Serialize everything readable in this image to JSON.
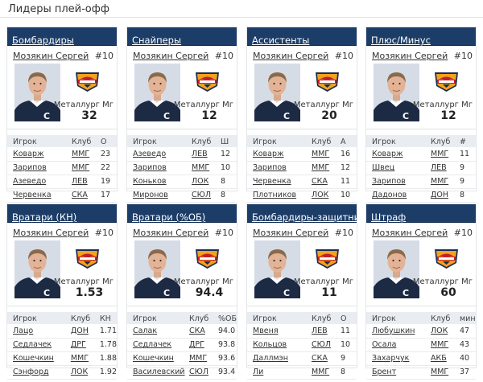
{
  "page": {
    "title": "Лидеры плей-офф"
  },
  "colors": {
    "card_header_bg": "#1c3d68",
    "card_header_text": "#ffffff",
    "table_header_bg": "#e9edf2"
  },
  "cards": [
    {
      "title": "Бомбардиры",
      "leader": {
        "name": "Мозякин Сергей",
        "number": "#10",
        "club": "Металлург Мг",
        "value": "32",
        "photo_icon": "player-photo",
        "logo_icon": "metallurg-logo"
      },
      "columns": [
        "Игрок",
        "Клуб",
        "О"
      ],
      "rows": [
        {
          "player": "Коварж",
          "club": "ММГ",
          "value": "23"
        },
        {
          "player": "Зарипов",
          "club": "ММГ",
          "value": "22"
        },
        {
          "player": "Азеведо",
          "club": "ЛЕВ",
          "value": "19"
        },
        {
          "player": "Червенка",
          "club": "СКА",
          "value": "17"
        }
      ]
    },
    {
      "title": "Снайперы",
      "leader": {
        "name": "Мозякин Сергей",
        "number": "#10",
        "club": "Металлург Мг",
        "value": "12",
        "photo_icon": "player-photo",
        "logo_icon": "metallurg-logo"
      },
      "columns": [
        "Игрок",
        "Клуб",
        "Ш"
      ],
      "rows": [
        {
          "player": "Азеведо",
          "club": "ЛЕВ",
          "value": "12"
        },
        {
          "player": "Зарипов",
          "club": "ММГ",
          "value": "10"
        },
        {
          "player": "Коньков",
          "club": "ЛОК",
          "value": "8"
        },
        {
          "player": "Миронов",
          "club": "СЮЛ",
          "value": "8"
        }
      ]
    },
    {
      "title": "Ассистенты",
      "leader": {
        "name": "Мозякин Сергей",
        "number": "#10",
        "club": "Металлург Мг",
        "value": "20",
        "photo_icon": "player-photo",
        "logo_icon": "metallurg-logo"
      },
      "columns": [
        "Игрок",
        "Клуб",
        "А"
      ],
      "rows": [
        {
          "player": "Коварж",
          "club": "ММГ",
          "value": "16"
        },
        {
          "player": "Зарипов",
          "club": "ММГ",
          "value": "12"
        },
        {
          "player": "Червенка",
          "club": "СКА",
          "value": "11"
        },
        {
          "player": "Плотников",
          "club": "ЛОК",
          "value": "10"
        }
      ]
    },
    {
      "title": "Плюс/Минус",
      "leader": {
        "name": "Мозякин Сергей",
        "number": "#10",
        "club": "Металлург Мг",
        "value": "12",
        "photo_icon": "player-photo",
        "logo_icon": "metallurg-logo"
      },
      "columns": [
        "Игрок",
        "Клуб",
        "#"
      ],
      "rows": [
        {
          "player": "Коварж",
          "club": "ММГ",
          "value": "11"
        },
        {
          "player": "Швец",
          "club": "ЛЕВ",
          "value": "9"
        },
        {
          "player": "Зарипов",
          "club": "ММГ",
          "value": "9"
        },
        {
          "player": "Дадонов",
          "club": "ДОН",
          "value": "8"
        }
      ]
    },
    {
      "title": "Вратари (КН)",
      "leader": {
        "name": "Мозякин Сергей",
        "number": "#10",
        "club": "Металлург Мг",
        "value": "1.53",
        "photo_icon": "player-photo",
        "logo_icon": "metallurg-logo"
      },
      "columns": [
        "Игрок",
        "Клуб",
        "КН"
      ],
      "rows": [
        {
          "player": "Лацо",
          "club": "ДОН",
          "value": "1.71"
        },
        {
          "player": "Седлачек",
          "club": "ДРГ",
          "value": "1.78"
        },
        {
          "player": "Кошечкин",
          "club": "ММГ",
          "value": "1.88"
        },
        {
          "player": "Сэнфорд",
          "club": "ЛОК",
          "value": "1.92"
        }
      ]
    },
    {
      "title": "Вратари (%ОБ)",
      "leader": {
        "name": "Мозякин Сергей",
        "number": "#10",
        "club": "Металлург Мг",
        "value": "94.4",
        "photo_icon": "player-photo",
        "logo_icon": "metallurg-logo"
      },
      "columns": [
        "Игрок",
        "Клуб",
        "%ОБ"
      ],
      "rows": [
        {
          "player": "Салак",
          "club": "СКА",
          "value": "94.0"
        },
        {
          "player": "Седлачек",
          "club": "ДРГ",
          "value": "93.8"
        },
        {
          "player": "Кошечкин",
          "club": "ММГ",
          "value": "93.6"
        },
        {
          "player": "Василевский",
          "club": "СЮЛ",
          "value": "93.4"
        }
      ]
    },
    {
      "title": "Бомбардиры-защитники",
      "leader": {
        "name": "Мозякин Сергей",
        "number": "#10",
        "club": "Металлург Мг",
        "value": "11",
        "photo_icon": "player-photo",
        "logo_icon": "metallurg-logo"
      },
      "columns": [
        "Игрок",
        "Клуб",
        "О"
      ],
      "rows": [
        {
          "player": "Мвеня",
          "club": "ЛЕВ",
          "value": "11"
        },
        {
          "player": "Кольцов",
          "club": "СЮЛ",
          "value": "10"
        },
        {
          "player": "Даллмэн",
          "club": "СКА",
          "value": "9"
        },
        {
          "player": "Ли",
          "club": "ММГ",
          "value": "8"
        }
      ]
    },
    {
      "title": "Штраф",
      "leader": {
        "name": "Мозякин Сергей",
        "number": "#10",
        "club": "Металлург Мг",
        "value": "60",
        "photo_icon": "player-photo",
        "logo_icon": "metallurg-logo"
      },
      "columns": [
        "Игрок",
        "Клуб",
        "мин"
      ],
      "rows": [
        {
          "player": "Любушкин",
          "club": "ЛОК",
          "value": "47"
        },
        {
          "player": "Осала",
          "club": "ММГ",
          "value": "43"
        },
        {
          "player": "Захарчук",
          "club": "АКБ",
          "value": "40"
        },
        {
          "player": "Брент",
          "club": "ММГ",
          "value": "37"
        }
      ]
    }
  ]
}
